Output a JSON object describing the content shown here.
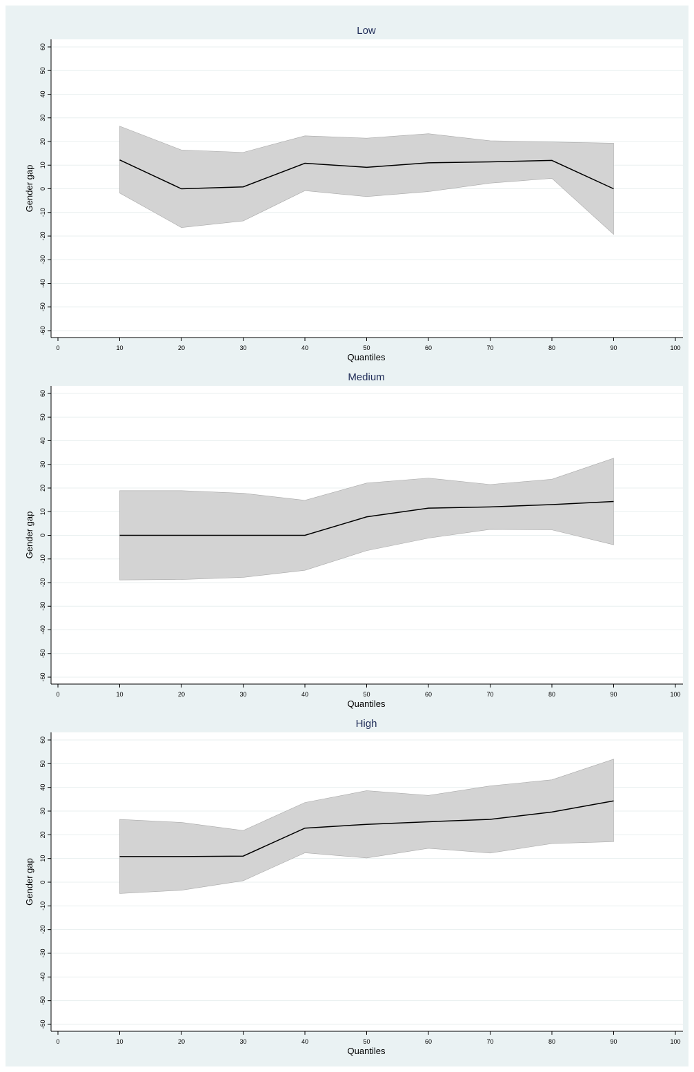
{
  "chart_data": [
    {
      "type": "line",
      "title": "Low",
      "xlabel": "Quantiles",
      "ylabel": "Gender gap",
      "xlim": [
        0,
        100
      ],
      "ylim": [
        -60,
        60
      ],
      "xticks": [
        0,
        10,
        20,
        30,
        40,
        50,
        60,
        70,
        80,
        90,
        100
      ],
      "yticks": [
        60,
        50,
        40,
        30,
        20,
        10,
        0,
        -10,
        -20,
        -30,
        -40,
        -50,
        -60
      ],
      "grid": true,
      "x": [
        10,
        20,
        30,
        40,
        50,
        60,
        70,
        80,
        90
      ],
      "estimate": [
        12.2,
        0,
        0.8,
        10.8,
        9.1,
        11,
        11.4,
        12,
        0
      ],
      "upper": [
        26.5,
        16.4,
        15.4,
        22.4,
        21.4,
        23.3,
        20.3,
        19.8,
        19.3
      ],
      "lower": [
        -1.8,
        -16.4,
        -13.6,
        -0.8,
        -3.3,
        -1.2,
        2.4,
        4.4,
        -19.3
      ],
      "colors": {
        "band": "#d3d3d3",
        "band_edge": "#aaaaaa",
        "line": "#000000"
      }
    },
    {
      "type": "line",
      "title": "Medium",
      "xlabel": "Quantiles",
      "ylabel": "Gender gap",
      "xlim": [
        0,
        100
      ],
      "ylim": [
        -60,
        60
      ],
      "xticks": [
        0,
        10,
        20,
        30,
        40,
        50,
        60,
        70,
        80,
        90,
        100
      ],
      "yticks": [
        60,
        50,
        40,
        30,
        20,
        10,
        0,
        -10,
        -20,
        -30,
        -40,
        -50,
        -60
      ],
      "grid": true,
      "x": [
        10,
        20,
        30,
        40,
        50,
        60,
        70,
        80,
        90
      ],
      "estimate": [
        0,
        0,
        0,
        0,
        7.8,
        11.5,
        12,
        13,
        14.3
      ],
      "upper": [
        18.9,
        18.9,
        17.8,
        14.8,
        22.1,
        24.2,
        21.5,
        23.7,
        32.6
      ],
      "lower": [
        -18.9,
        -18.7,
        -17.8,
        -14.8,
        -6.5,
        -1.2,
        2.5,
        2.3,
        -4
      ],
      "colors": {
        "band": "#d3d3d3",
        "band_edge": "#aaaaaa",
        "line": "#000000"
      }
    },
    {
      "type": "line",
      "title": "High",
      "xlabel": "Quantiles",
      "ylabel": "Gender gap",
      "xlim": [
        0,
        100
      ],
      "ylim": [
        -60,
        60
      ],
      "xticks": [
        0,
        10,
        20,
        30,
        40,
        50,
        60,
        70,
        80,
        90,
        100
      ],
      "yticks": [
        60,
        50,
        40,
        30,
        20,
        10,
        0,
        -10,
        -20,
        -30,
        -40,
        -50,
        -60
      ],
      "grid": true,
      "x": [
        10,
        20,
        30,
        40,
        50,
        60,
        70,
        80,
        90
      ],
      "estimate": [
        10.8,
        10.8,
        11,
        22.8,
        24.4,
        25.5,
        26.5,
        29.6,
        34.3
      ],
      "upper": [
        26.5,
        25.2,
        21.8,
        33.6,
        38.6,
        36.6,
        40.6,
        43.2,
        51.9
      ],
      "lower": [
        -4.8,
        -3.4,
        0.6,
        12.4,
        10.2,
        14.3,
        12.3,
        16.3,
        17.1
      ],
      "colors": {
        "band": "#d3d3d3",
        "band_edge": "#aaaaaa",
        "line": "#000000"
      }
    }
  ]
}
